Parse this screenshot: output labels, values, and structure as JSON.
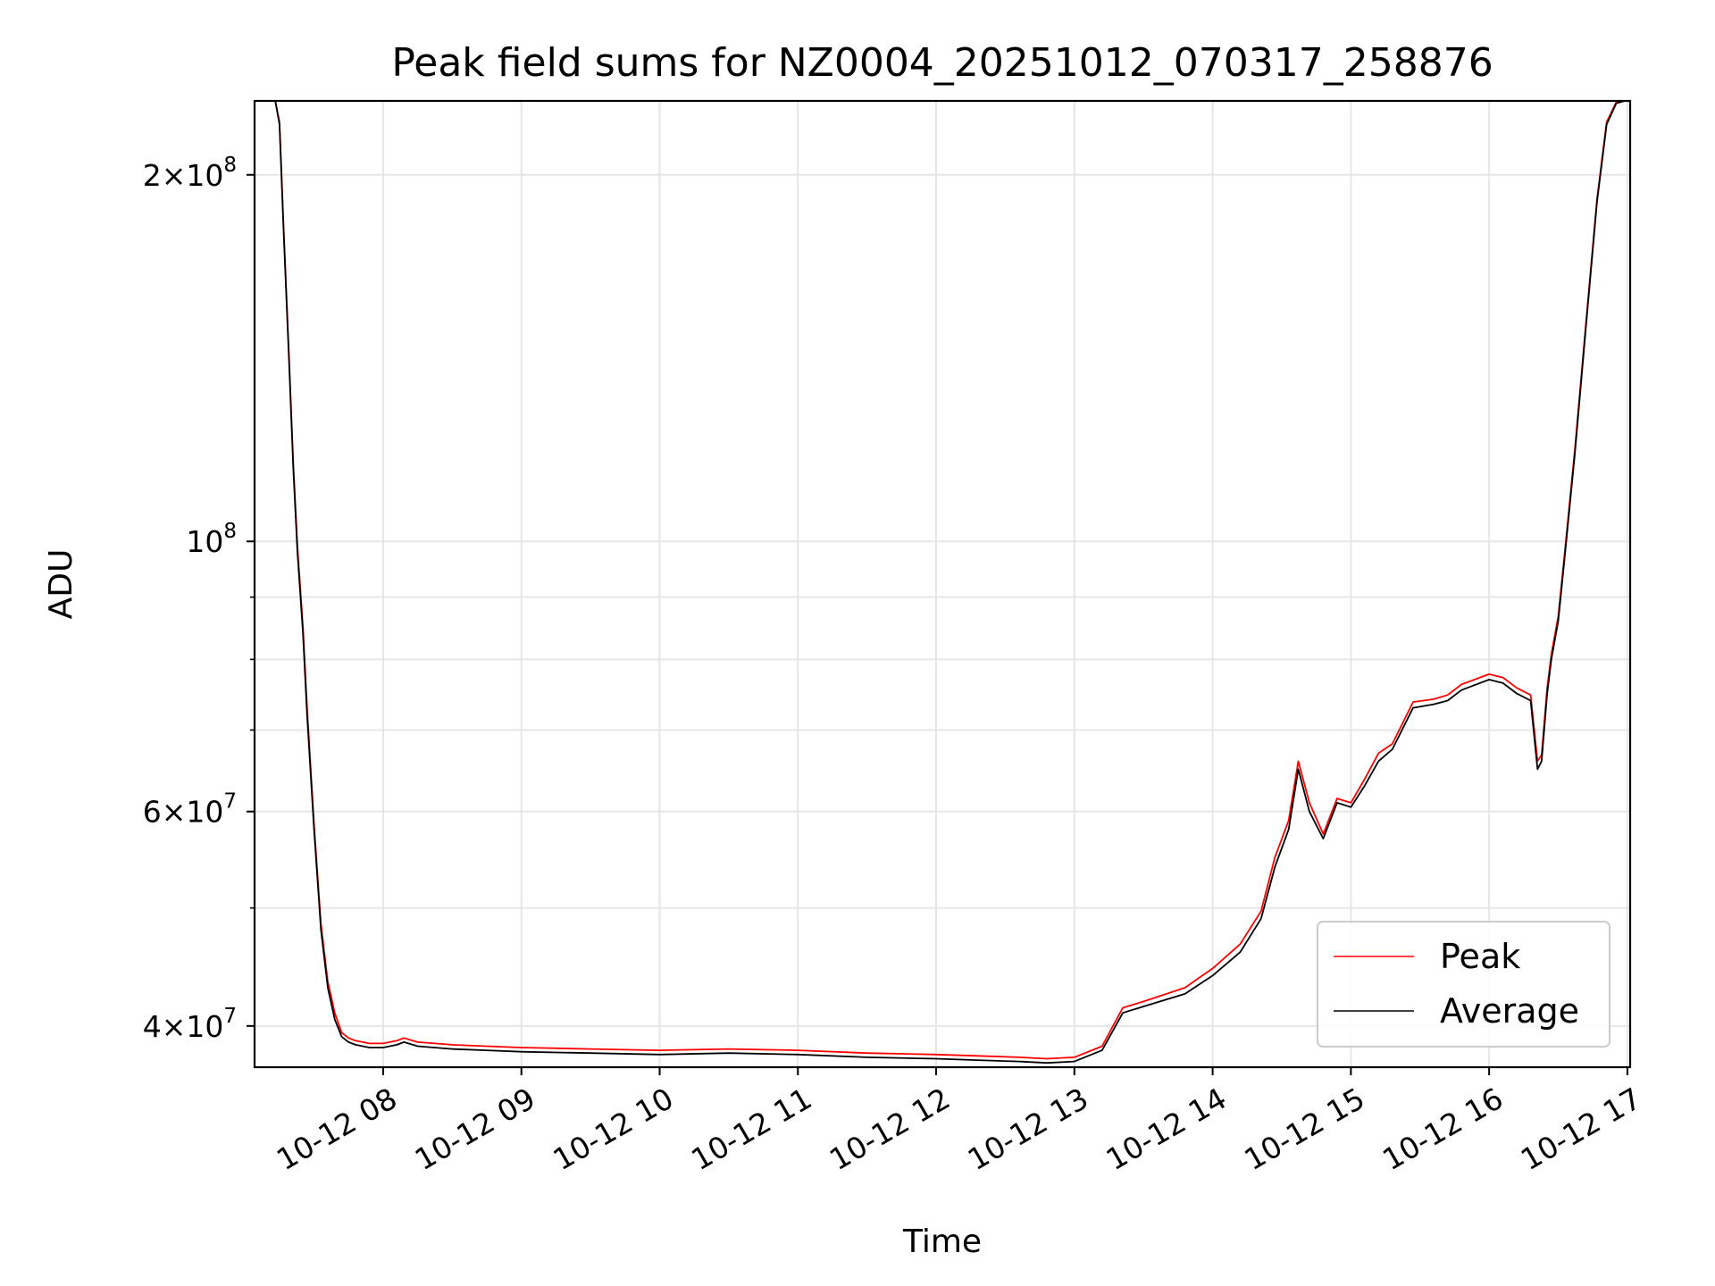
{
  "chart_data": {
    "type": "line",
    "title": "Peak field sums for NZ0004_20251012_070317_258876",
    "xlabel": "Time",
    "ylabel": "ADU",
    "yscale": "log",
    "grid": true,
    "legend_position": "lower right",
    "xlim": [
      7.07,
      17.02
    ],
    "ylim": [
      37000000,
      230000000
    ],
    "x_ticks": [
      {
        "value": 8,
        "label": "10-12 08"
      },
      {
        "value": 9,
        "label": "10-12 09"
      },
      {
        "value": 10,
        "label": "10-12 10"
      },
      {
        "value": 11,
        "label": "10-12 11"
      },
      {
        "value": 12,
        "label": "10-12 12"
      },
      {
        "value": 13,
        "label": "10-12 13"
      },
      {
        "value": 14,
        "label": "10-12 14"
      },
      {
        "value": 15,
        "label": "10-12 15"
      },
      {
        "value": 16,
        "label": "10-12 16"
      },
      {
        "value": 17,
        "label": "10-12 17"
      }
    ],
    "y_ticks": [
      {
        "value": 40000000,
        "mantissa": "4",
        "exponent": "7"
      },
      {
        "value": 60000000,
        "mantissa": "6",
        "exponent": "7"
      },
      {
        "value": 100000000,
        "mantissa": "",
        "exponent": "8"
      },
      {
        "value": 200000000,
        "mantissa": "2",
        "exponent": "8"
      }
    ],
    "y_minor_ticks": [
      50000000,
      70000000,
      80000000,
      90000000
    ],
    "x_unit_note": "hour of day on 10-12",
    "series": [
      {
        "name": "Average",
        "color": "#000000",
        "x": [
          7.07,
          7.22,
          7.25,
          7.28,
          7.32,
          7.35,
          7.38,
          7.42,
          7.45,
          7.5,
          7.55,
          7.6,
          7.65,
          7.7,
          7.75,
          7.8,
          7.9,
          8.0,
          8.1,
          8.15,
          8.25,
          8.5,
          8.75,
          9.0,
          9.5,
          10.0,
          10.5,
          11.0,
          11.5,
          12.0,
          12.3,
          12.6,
          12.8,
          13.0,
          13.2,
          13.35,
          13.5,
          13.8,
          14.0,
          14.2,
          14.35,
          14.45,
          14.55,
          14.62,
          14.7,
          14.8,
          14.9,
          15.0,
          15.1,
          15.2,
          15.3,
          15.45,
          15.6,
          15.7,
          15.8,
          16.0,
          16.1,
          16.2,
          16.3,
          16.35,
          16.38,
          16.42,
          16.45,
          16.5,
          16.55,
          16.62,
          16.7,
          16.78,
          16.85,
          16.92,
          16.98,
          17.02
        ],
        "y": [
          230000000,
          230000000,
          220000000,
          180000000,
          140000000,
          115000000,
          98000000,
          84000000,
          72000000,
          58000000,
          48000000,
          43000000,
          40500000,
          39200000,
          38800000,
          38600000,
          38400000,
          38400000,
          38600000,
          38800000,
          38500000,
          38300000,
          38200000,
          38100000,
          38000000,
          37900000,
          38000000,
          37900000,
          37700000,
          37600000,
          37500000,
          37400000,
          37300000,
          37400000,
          38200000,
          41000000,
          41500000,
          42500000,
          44000000,
          46000000,
          49000000,
          54000000,
          58000000,
          65000000,
          60000000,
          57000000,
          61000000,
          60500000,
          63000000,
          66000000,
          67500000,
          73000000,
          73500000,
          74000000,
          75500000,
          77000000,
          76500000,
          75000000,
          74000000,
          65000000,
          66000000,
          75000000,
          80000000,
          86000000,
          98000000,
          118000000,
          150000000,
          190000000,
          220000000,
          229000000,
          230000000,
          230000000
        ]
      },
      {
        "name": "Peak",
        "color": "#ff0000",
        "x": [
          7.07,
          7.22,
          7.25,
          7.28,
          7.32,
          7.35,
          7.38,
          7.42,
          7.45,
          7.5,
          7.55,
          7.6,
          7.65,
          7.7,
          7.75,
          7.8,
          7.9,
          8.0,
          8.1,
          8.15,
          8.25,
          8.5,
          8.75,
          9.0,
          9.5,
          10.0,
          10.5,
          11.0,
          11.5,
          12.0,
          12.3,
          12.6,
          12.8,
          13.0,
          13.2,
          13.35,
          13.5,
          13.8,
          14.0,
          14.2,
          14.35,
          14.45,
          14.55,
          14.62,
          14.7,
          14.8,
          14.9,
          15.0,
          15.1,
          15.2,
          15.3,
          15.45,
          15.6,
          15.7,
          15.8,
          16.0,
          16.1,
          16.2,
          16.3,
          16.35,
          16.38,
          16.42,
          16.45,
          16.5,
          16.55,
          16.62,
          16.7,
          16.78,
          16.85,
          16.92,
          16.98,
          17.02
        ],
        "y": [
          230000000,
          230000000,
          221000000,
          181000000,
          141000000,
          116000000,
          99000000,
          85000000,
          73000000,
          58500000,
          48500000,
          43500000,
          41000000,
          39500000,
          39100000,
          38900000,
          38700000,
          38700000,
          38900000,
          39100000,
          38800000,
          38600000,
          38500000,
          38400000,
          38300000,
          38200000,
          38300000,
          38200000,
          38000000,
          37900000,
          37800000,
          37700000,
          37600000,
          37700000,
          38500000,
          41400000,
          41900000,
          43000000,
          44600000,
          46700000,
          49700000,
          55000000,
          59000000,
          66000000,
          61000000,
          57500000,
          61500000,
          61000000,
          63800000,
          67000000,
          68200000,
          73800000,
          74200000,
          74800000,
          76300000,
          77800000,
          77300000,
          75800000,
          74800000,
          66000000,
          66800000,
          75800000,
          80800000,
          86800000,
          98800000,
          119000000,
          151000000,
          191000000,
          221000000,
          229500000,
          230000000,
          230000000
        ]
      }
    ]
  }
}
